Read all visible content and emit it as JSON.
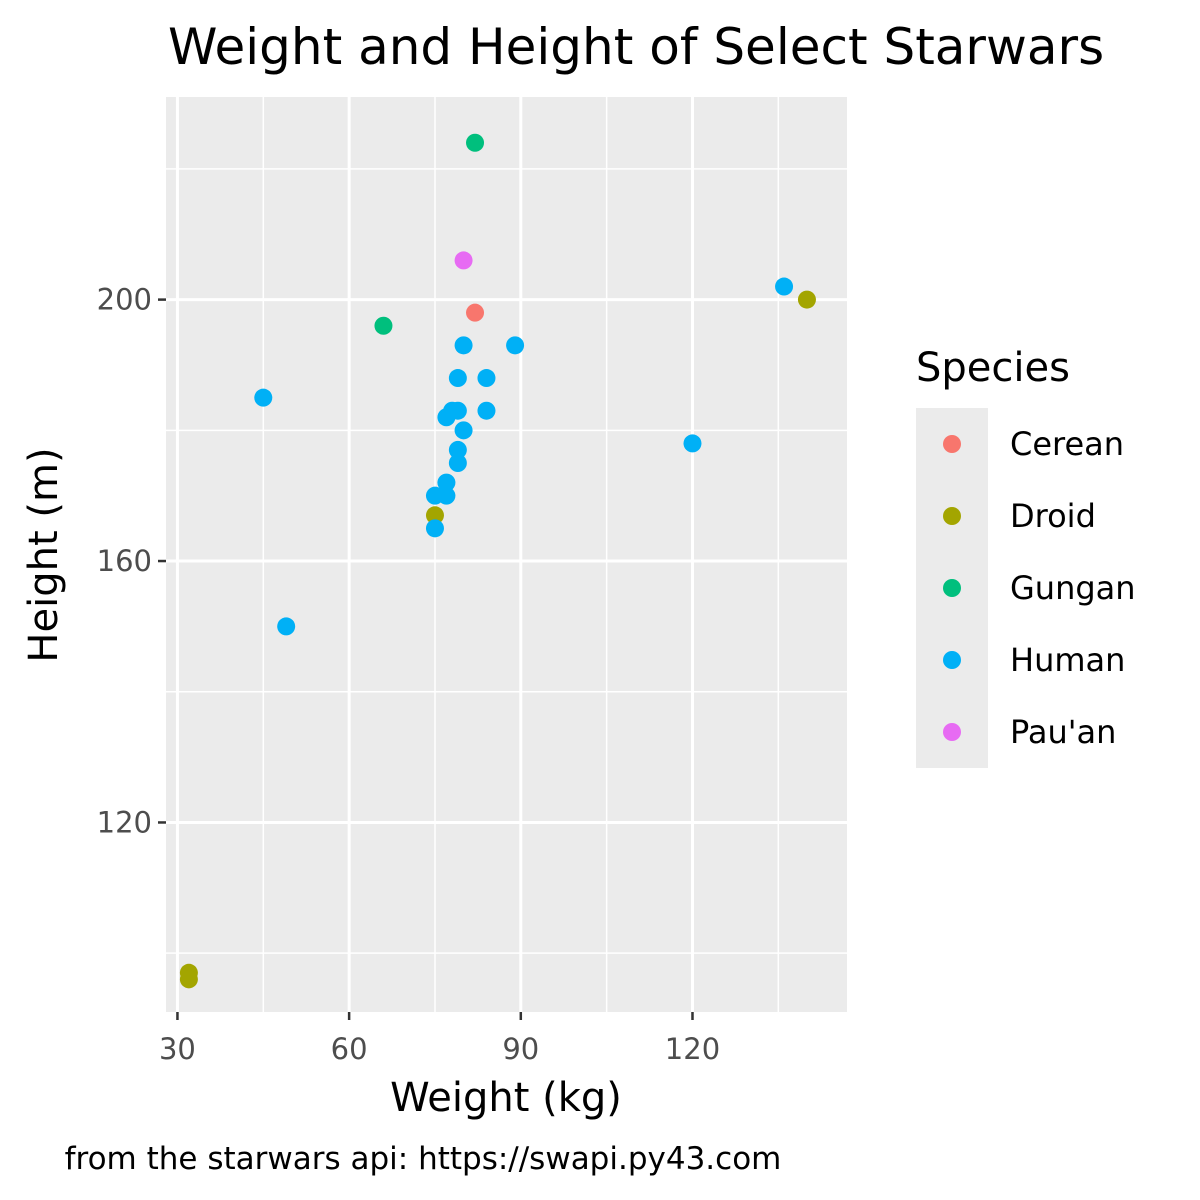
{
  "chart_data": {
    "type": "scatter",
    "title": "Weight and Height of Select Starwars",
    "xlabel": "Weight (kg)",
    "ylabel": "Height (m)",
    "caption": "from the starwars api: https://swapi.py43.com",
    "xlim": [
      28,
      147
    ],
    "ylim": [
      91,
      231
    ],
    "x_ticks": [
      30,
      60,
      90,
      120
    ],
    "y_ticks": [
      120,
      160,
      200
    ],
    "x_minor_grid": [
      45,
      75,
      105,
      135
    ],
    "y_minor_grid": [
      100,
      140,
      180,
      220
    ],
    "grid": true,
    "panel_background": "#ebebeb",
    "grid_color": "#ffffff",
    "legend": {
      "title": "Species",
      "position": "right",
      "entries": [
        "Cerean",
        "Droid",
        "Gungan",
        "Human",
        "Pau'an"
      ]
    },
    "colors": {
      "Cerean": "#F8766D",
      "Droid": "#A3A500",
      "Gungan": "#00BF7D",
      "Human": "#00B0F6",
      "Pau'an": "#E76BF3"
    },
    "series": [
      {
        "name": "Cerean",
        "points": [
          [
            82,
            198
          ]
        ]
      },
      {
        "name": "Droid",
        "points": [
          [
            32,
            97
          ],
          [
            32,
            96
          ],
          [
            75,
            167
          ],
          [
            140,
            200
          ]
        ]
      },
      {
        "name": "Gungan",
        "points": [
          [
            66,
            196
          ],
          [
            82,
            224
          ]
        ]
      },
      {
        "name": "Human",
        "points": [
          [
            77,
            172
          ],
          [
            75,
            165
          ],
          [
            84,
            188
          ],
          [
            77,
            182
          ],
          [
            84,
            183
          ],
          [
            89,
            193
          ],
          [
            80,
            193
          ],
          [
            45,
            185
          ],
          [
            49,
            150
          ],
          [
            78,
            183
          ],
          [
            79,
            188
          ],
          [
            79,
            183
          ],
          [
            80,
            180
          ],
          [
            79,
            177
          ],
          [
            79,
            175
          ],
          [
            77,
            170
          ],
          [
            75,
            170
          ],
          [
            120,
            178
          ],
          [
            136,
            202
          ]
        ]
      },
      {
        "name": "Pau'an",
        "points": [
          [
            80,
            206
          ]
        ]
      }
    ]
  }
}
